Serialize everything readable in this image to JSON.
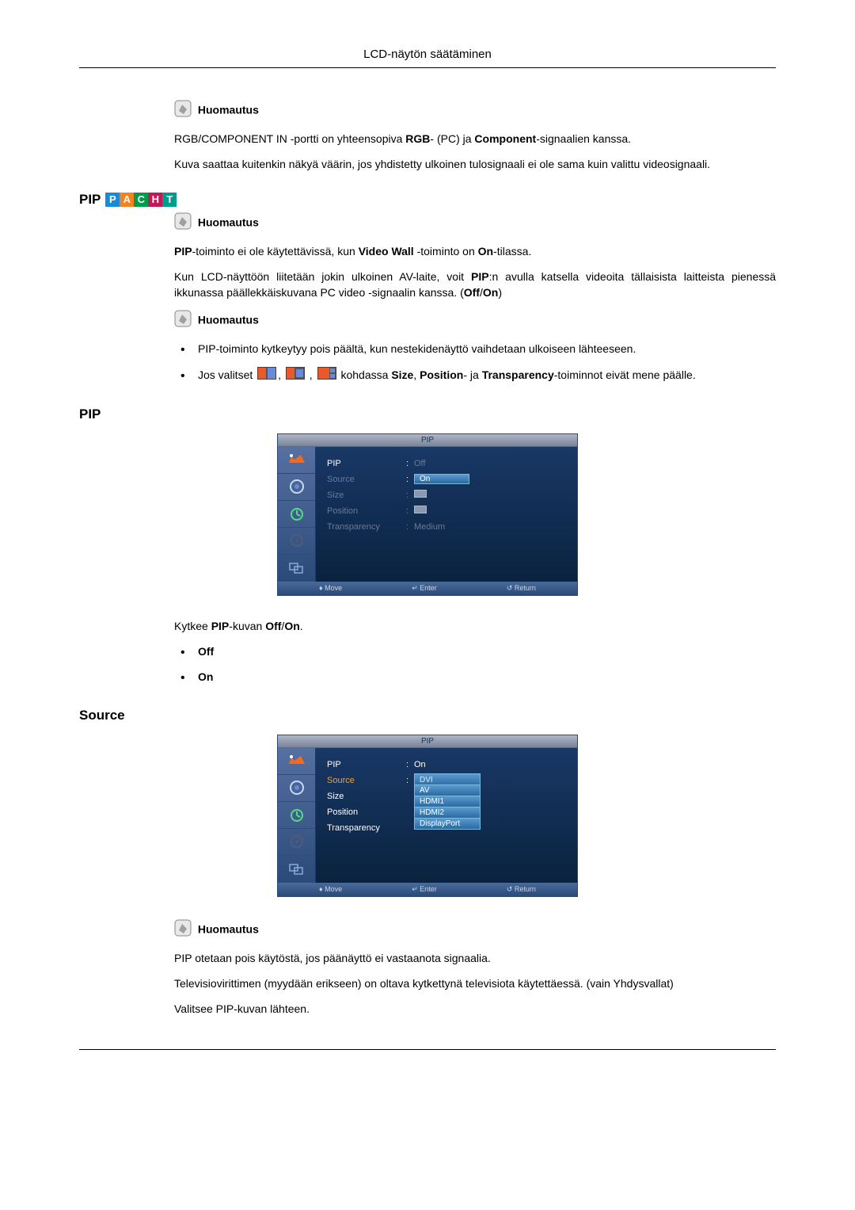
{
  "header": {
    "title": "LCD-näytön säätäminen"
  },
  "section1": {
    "note_label": "Huomautus",
    "p1_a": "RGB/COMPONENT IN -portti on yhteensopiva ",
    "p1_b": "RGB",
    "p1_c": "- (PC) ja ",
    "p1_d": "Component",
    "p1_e": "-signaalien kanssa.",
    "p2": "Kuva saattaa kuitenkin näkyä väärin, jos yhdistetty ulkoinen tulosignaali ei ole sama kuin valittu videosignaali."
  },
  "pip_heading": {
    "title": "PIP",
    "badges": [
      {
        "letter": "P",
        "color": "#1a8ad8"
      },
      {
        "letter": "A",
        "color": "#f58020"
      },
      {
        "letter": "C",
        "color": "#009a4a"
      },
      {
        "letter": "H",
        "color": "#c01a5a"
      },
      {
        "letter": "T",
        "color": "#009a8a"
      }
    ]
  },
  "section2": {
    "note_label": "Huomautus",
    "p1_a": "PIP",
    "p1_b": "-toiminto ei ole käytettävissä, kun ",
    "p1_c": "Video Wall",
    "p1_d": " -toiminto on ",
    "p1_e": "On",
    "p1_f": "-tilassa.",
    "p2_a": "Kun LCD-näyttöön liitetään jokin ulkoinen AV-laite, voit ",
    "p2_b": "PIP",
    "p2_c": ":n avulla katsella videoita tällaisista laitteista pienessä ikkunassa päällekkäiskuvana PC video -signaalin kanssa. (",
    "p2_d": "Off",
    "p2_e": "/",
    "p2_f": "On",
    "p2_g": ")",
    "note_label2": "Huomautus",
    "b1": "PIP-toiminto kytkeytyy pois päältä, kun nestekidenäyttö vaihdetaan ulkoiseen lähteeseen.",
    "b2_a": "Jos valitset ",
    "b2_b": " kohdassa ",
    "b2_c": "Size",
    "b2_d": ", ",
    "b2_e": "Position",
    "b2_f": "- ja ",
    "b2_g": "Transparency",
    "b2_h": "-toiminnot eivät mene päälle."
  },
  "pip_sub": {
    "title": "PIP",
    "caption_a": "Kytkee ",
    "caption_b": "PIP",
    "caption_c": "-kuvan ",
    "caption_d": "Off",
    "caption_e": "/",
    "caption_f": "On",
    "caption_g": ".",
    "opt1": "Off",
    "opt2": "On"
  },
  "source_sub": {
    "title": "Source",
    "note_label": "Huomautus",
    "p1": "PIP otetaan pois käytöstä, jos päänäyttö ei vastaanota signaalia.",
    "p2": "Televisiovirittimen (myydään erikseen) on oltava kytkettynä televisiota käytettäessä. (vain Yhdysvallat)",
    "p3": "Valitsee PIP-kuvan lähteen."
  },
  "osd1": {
    "title": "PIP",
    "rows": {
      "pip": "PIP",
      "pip_val_off": "Off",
      "pip_val_on": "On",
      "source": "Source",
      "size": "Size",
      "position": "Position",
      "transparency": "Transparency",
      "transparency_val": "Medium"
    },
    "footer": {
      "move": "Move",
      "enter": "Enter",
      "return": "Return"
    }
  },
  "osd2": {
    "title": "PIP",
    "rows": {
      "pip": "PIP",
      "pip_val": "On",
      "source": "Source",
      "source_val": "DVI",
      "size": "Size",
      "position": "Position",
      "transparency": "Transparency",
      "options": [
        "AV",
        "HDMI1",
        "HDMI2",
        "DisplayPort"
      ]
    },
    "footer": {
      "move": "Move",
      "enter": "Enter",
      "return": "Return"
    }
  },
  "icons": {
    "note_fill": "#7a7a7a",
    "pencil_fill": "#b8b8b8"
  }
}
